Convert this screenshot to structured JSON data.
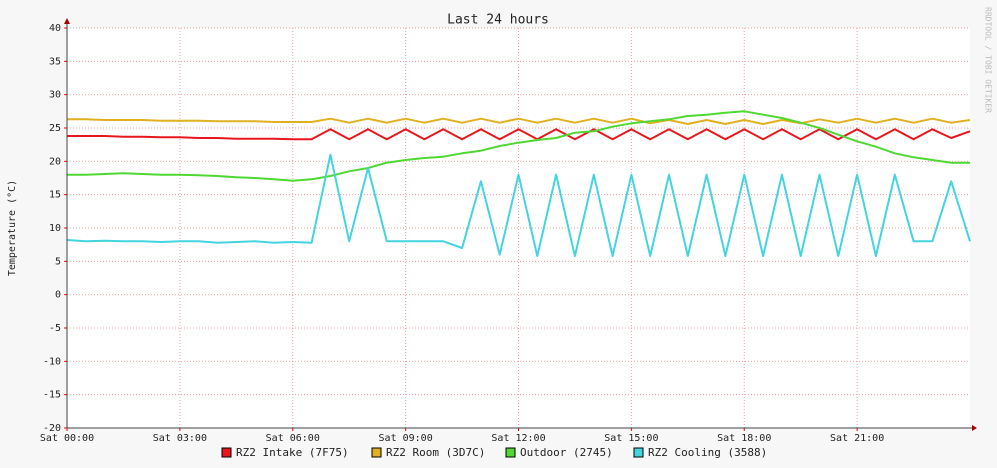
{
  "chart_data": {
    "type": "line",
    "title": "Last 24 hours",
    "y_label": "Temperature (°C)",
    "side_text": "RRDTOOL / TOBI OETIKER",
    "x": [
      0,
      0.5,
      1,
      1.5,
      2,
      2.5,
      3,
      3.5,
      4,
      4.5,
      5,
      5.5,
      6,
      6.5,
      7,
      7.5,
      8,
      8.5,
      9,
      9.5,
      10,
      10.5,
      11,
      11.5,
      12,
      12.5,
      13,
      13.5,
      14,
      14.5,
      15,
      15.5,
      16,
      16.5,
      17,
      17.5,
      18,
      18.5,
      19,
      19.5,
      20,
      20.5,
      21,
      21.5,
      22,
      22.5,
      23,
      23.5,
      24
    ],
    "xlim": [
      0,
      24
    ],
    "xticks": [
      {
        "value": 0,
        "label": "Sat 00:00"
      },
      {
        "value": 3,
        "label": "Sat 03:00"
      },
      {
        "value": 6,
        "label": "Sat 06:00"
      },
      {
        "value": 9,
        "label": "Sat 09:00"
      },
      {
        "value": 12,
        "label": "Sat 12:00"
      },
      {
        "value": 15,
        "label": "Sat 15:00"
      },
      {
        "value": 18,
        "label": "Sat 18:00"
      },
      {
        "value": 21,
        "label": "Sat 21:00"
      }
    ],
    "ylim": [
      -20,
      40
    ],
    "yticks": [
      -20,
      -15,
      -10,
      -5,
      0,
      5,
      10,
      15,
      20,
      25,
      30,
      35,
      40
    ],
    "grid": true,
    "series": [
      {
        "name": "RZ2 Intake (7F75)",
        "color": "#e8171d",
        "values": [
          23.8,
          23.8,
          23.8,
          23.7,
          23.7,
          23.6,
          23.6,
          23.5,
          23.5,
          23.4,
          23.4,
          23.4,
          23.3,
          23.3,
          24.8,
          23.3,
          24.8,
          23.3,
          24.8,
          23.3,
          24.8,
          23.3,
          24.8,
          23.3,
          24.8,
          23.3,
          24.8,
          23.3,
          24.8,
          23.3,
          24.8,
          23.3,
          24.8,
          23.3,
          24.8,
          23.3,
          24.8,
          23.3,
          24.8,
          23.3,
          24.8,
          23.3,
          24.8,
          23.3,
          24.8,
          23.3,
          24.8,
          23.5,
          24.5
        ]
      },
      {
        "name": "RZ2 Room (3D7C)",
        "color": "#e0b020",
        "values": [
          26.3,
          26.3,
          26.2,
          26.2,
          26.2,
          26.1,
          26.1,
          26.1,
          26.0,
          26.0,
          26.0,
          25.9,
          25.9,
          25.9,
          26.4,
          25.8,
          26.4,
          25.8,
          26.4,
          25.8,
          26.4,
          25.8,
          26.4,
          25.8,
          26.4,
          25.8,
          26.4,
          25.8,
          26.4,
          25.8,
          26.4,
          25.7,
          26.2,
          25.6,
          26.2,
          25.6,
          26.2,
          25.6,
          26.2,
          25.7,
          26.3,
          25.8,
          26.4,
          25.8,
          26.4,
          25.8,
          26.4,
          25.8,
          26.2
        ]
      },
      {
        "name": "Outdoor (2745)",
        "color": "#4fd832",
        "values": [
          18,
          18,
          18.1,
          18.2,
          18.1,
          18,
          18,
          17.9,
          17.8,
          17.6,
          17.5,
          17.3,
          17.1,
          17.3,
          17.8,
          18.5,
          19,
          19.8,
          20.2,
          20.5,
          20.7,
          21.2,
          21.6,
          22.3,
          22.8,
          23.2,
          23.5,
          24.3,
          24.5,
          25.2,
          25.7,
          26,
          26.3,
          26.8,
          27,
          27.3,
          27.5,
          27,
          26.5,
          25.8,
          25,
          24,
          23,
          22.2,
          21.2,
          20.6,
          20.2,
          19.8,
          19.8
        ]
      },
      {
        "name": "RZ2 Cooling (3588)",
        "color": "#44d4e0",
        "values": [
          8.2,
          8,
          8.1,
          8,
          8,
          7.9,
          8,
          8,
          7.8,
          7.9,
          8,
          7.8,
          7.9,
          7.8,
          21,
          8,
          19,
          8,
          8,
          8,
          8,
          7,
          17,
          6,
          18,
          5.8,
          18,
          5.8,
          18,
          5.8,
          18,
          5.8,
          18,
          5.8,
          18,
          5.8,
          18,
          5.8,
          18,
          5.8,
          18,
          5.8,
          18,
          5.8,
          18,
          8,
          8,
          17,
          8
        ]
      }
    ]
  }
}
